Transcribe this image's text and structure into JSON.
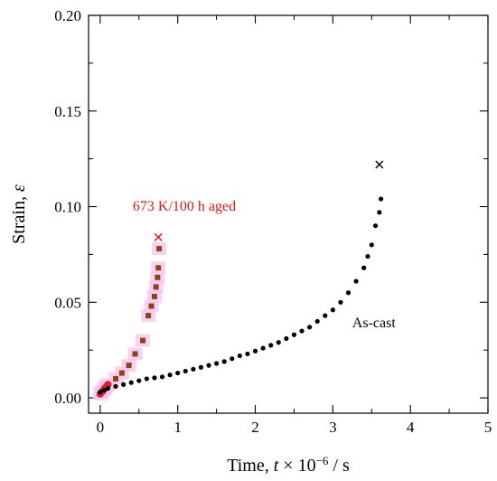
{
  "chart_data": {
    "type": "scatter",
    "title": "",
    "xlabel": {
      "prefix": "Time, ",
      "var": "t",
      "mid": " × 10",
      "sup": "−6",
      "suffix": " / s"
    },
    "ylabel": {
      "prefix": "Strain, ",
      "var": "ε"
    },
    "xlim": [
      -0.15,
      5.0
    ],
    "ylim": [
      -0.008,
      0.2
    ],
    "xticks": [
      0,
      1,
      2,
      3,
      4,
      5
    ],
    "yticks": [
      0.0,
      0.05,
      0.1,
      0.15,
      0.2
    ],
    "ytick_labels": [
      "0.00",
      "0.05",
      "0.10",
      "0.15",
      "0.20"
    ],
    "grid": false,
    "series": [
      {
        "name": "",
        "label": "673 K/100 h aged",
        "label_color": "#e8141c",
        "marker": "square",
        "color": "#8b4513",
        "highlight": "#f8c6f0",
        "early_color": "#e02020",
        "fracture_marker": "x",
        "fracture_color": "#e8141c",
        "fracture": [
          0.75,
          0.084
        ],
        "x": [
          0.0,
          0.02,
          0.04,
          0.06,
          0.08,
          0.1,
          0.2,
          0.28,
          0.37,
          0.45,
          0.55,
          0.62,
          0.66,
          0.7,
          0.72,
          0.74,
          0.75,
          0.76
        ],
        "y": [
          0.002,
          0.003,
          0.004,
          0.005,
          0.006,
          0.007,
          0.01,
          0.013,
          0.017,
          0.023,
          0.03,
          0.043,
          0.048,
          0.053,
          0.058,
          0.063,
          0.068,
          0.078
        ]
      },
      {
        "name": "",
        "label": "As-cast",
        "label_color": "#000000",
        "marker": "circle",
        "color": "#000000",
        "fracture_marker": "x",
        "fracture_color": "#000000",
        "fracture": [
          3.6,
          0.122
        ],
        "x": [
          0.0,
          0.05,
          0.1,
          0.2,
          0.3,
          0.4,
          0.5,
          0.6,
          0.7,
          0.8,
          0.9,
          1.0,
          1.1,
          1.2,
          1.3,
          1.4,
          1.5,
          1.6,
          1.7,
          1.8,
          1.9,
          2.0,
          2.1,
          2.2,
          2.3,
          2.4,
          2.5,
          2.6,
          2.7,
          2.8,
          2.9,
          3.0,
          3.1,
          3.2,
          3.3,
          3.4,
          3.45,
          3.5,
          3.55,
          3.6,
          3.62
        ],
        "y": [
          0.003,
          0.004,
          0.005,
          0.006,
          0.007,
          0.008,
          0.009,
          0.01,
          0.0105,
          0.011,
          0.012,
          0.013,
          0.014,
          0.015,
          0.016,
          0.017,
          0.018,
          0.019,
          0.0205,
          0.022,
          0.023,
          0.0245,
          0.026,
          0.0275,
          0.029,
          0.031,
          0.033,
          0.035,
          0.037,
          0.04,
          0.043,
          0.046,
          0.05,
          0.055,
          0.061,
          0.068,
          0.074,
          0.08,
          0.09,
          0.097,
          0.104
        ]
      }
    ],
    "annotations": [
      {
        "text": "673 K/100 h aged",
        "x": 0.42,
        "y": 0.098,
        "color": "#e8141c"
      },
      {
        "text": "As-cast",
        "x": 3.25,
        "y": 0.037,
        "color": "#000000"
      }
    ]
  }
}
